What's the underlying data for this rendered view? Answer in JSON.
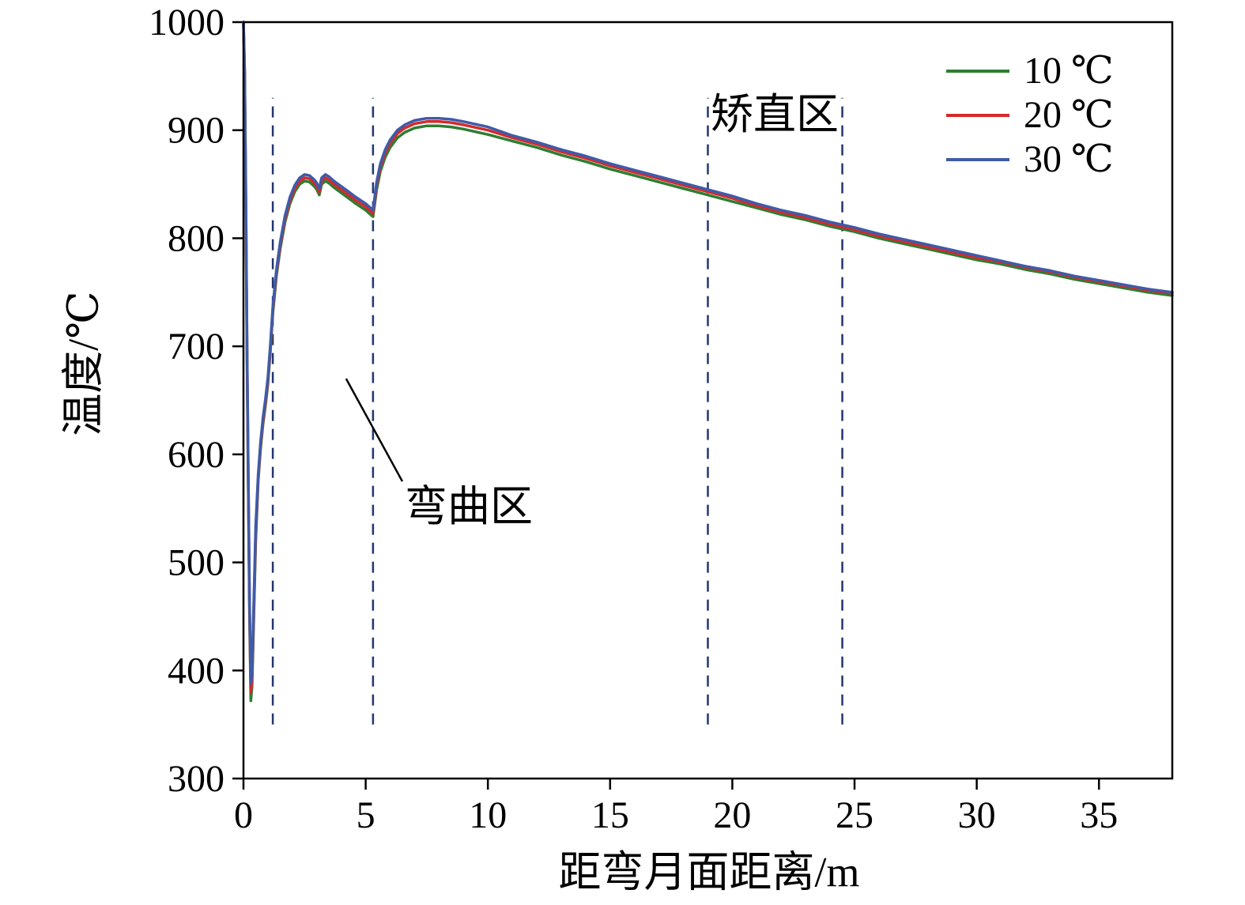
{
  "chart_data": {
    "type": "line",
    "title": "",
    "xlabel": "距弯月面距离/m",
    "ylabel": "温度/℃",
    "xlim": [
      0,
      38
    ],
    "ylim": [
      300,
      1000
    ],
    "xticks": [
      0,
      5,
      10,
      15,
      20,
      25,
      30,
      35
    ],
    "yticks": [
      300,
      400,
      500,
      600,
      700,
      800,
      900,
      1000
    ],
    "grid": false,
    "legend_position": "top-right",
    "axis_color": "#000000",
    "vlines": {
      "style": "dashed",
      "color": "#23366e",
      "y_bottom": 350,
      "y_top": 930,
      "x_values": [
        1.2,
        5.3,
        19.0,
        24.5
      ]
    },
    "annotations": [
      {
        "text": "矫直区",
        "region": [
          19.0,
          24.5
        ]
      },
      {
        "text": "弯曲区",
        "region": [
          1.2,
          5.3
        ],
        "leader": {
          "x1": 4.2,
          "y1": 670,
          "x2": 6.5,
          "y2": 575
        }
      }
    ],
    "x": [
      0,
      0.05,
      0.1,
      0.15,
      0.2,
      0.25,
      0.3,
      0.35,
      0.4,
      0.5,
      0.6,
      0.7,
      0.8,
      0.9,
      1.0,
      1.1,
      1.2,
      1.35,
      1.5,
      1.7,
      1.9,
      2.1,
      2.3,
      2.5,
      2.7,
      2.9,
      3.0,
      3.1,
      3.2,
      3.35,
      3.5,
      3.7,
      4.0,
      4.3,
      4.6,
      5.0,
      5.2,
      5.3,
      5.45,
      5.6,
      5.8,
      6.0,
      6.3,
      6.6,
      7.0,
      7.5,
      8.0,
      8.5,
      9.0,
      10,
      11,
      12,
      13,
      14,
      15,
      16,
      17,
      18,
      19,
      20,
      21,
      22,
      23,
      24,
      25,
      26,
      27,
      28,
      29,
      30,
      31,
      32,
      33,
      34,
      35,
      36,
      37,
      38
    ],
    "series": [
      {
        "name": "10 ℃",
        "color": "#2f7d32",
        "values": [
          1000,
          950,
          820,
          680,
          560,
          450,
          372,
          385,
          430,
          520,
          575,
          605,
          628,
          645,
          665,
          695,
          730,
          765,
          790,
          815,
          832,
          843,
          850,
          853,
          852,
          848,
          845,
          840,
          850,
          853,
          851,
          847,
          842,
          837,
          832,
          826,
          822,
          820,
          845,
          862,
          875,
          884,
          893,
          898,
          902,
          904,
          904,
          903,
          901,
          896,
          890,
          884,
          877,
          871,
          864,
          858,
          852,
          846,
          840,
          834,
          828,
          822,
          817,
          811,
          806,
          800,
          795,
          790,
          785,
          780,
          776,
          771,
          767,
          762,
          758,
          754,
          750,
          747
        ]
      },
      {
        "name": "20 ℃",
        "color": "#d42a2c",
        "values": [
          1000,
          952,
          827,
          687,
          567,
          457,
          380,
          392,
          437,
          527,
          578,
          608,
          631,
          648,
          668,
          698,
          733,
          768,
          793,
          818,
          835,
          846,
          853,
          856,
          855,
          851,
          848,
          843,
          853,
          856,
          854,
          850,
          845,
          840,
          835,
          829,
          825,
          823,
          849,
          866,
          879,
          888,
          897,
          902,
          906,
          908,
          908,
          907,
          905,
          900,
          893,
          887,
          880,
          874,
          867,
          861,
          855,
          849,
          843,
          837,
          830,
          824,
          819,
          813,
          808,
          802,
          797,
          792,
          787,
          782,
          778,
          773,
          769,
          764,
          760,
          756,
          752,
          749
        ]
      },
      {
        "name": "30 ℃",
        "color": "#3f5ba9",
        "values": [
          1000,
          955,
          834,
          694,
          574,
          464,
          388,
          399,
          444,
          534,
          581,
          611,
          634,
          651,
          671,
          701,
          736,
          771,
          796,
          821,
          838,
          849,
          856,
          859,
          858,
          854,
          851,
          846,
          856,
          859,
          857,
          853,
          848,
          843,
          838,
          832,
          828,
          826,
          852,
          869,
          882,
          891,
          900,
          905,
          909,
          911,
          911,
          910,
          908,
          903,
          895,
          889,
          882,
          876,
          869,
          863,
          857,
          851,
          845,
          839,
          832,
          826,
          821,
          815,
          810,
          804,
          799,
          794,
          789,
          784,
          779,
          774,
          770,
          765,
          761,
          757,
          753,
          750
        ]
      }
    ]
  }
}
